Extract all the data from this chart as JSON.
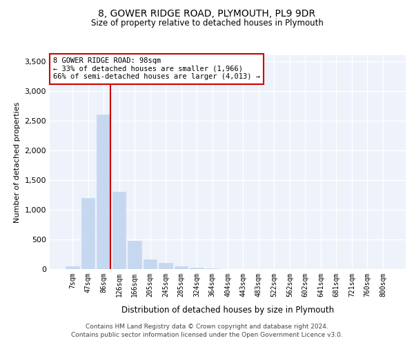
{
  "title_line1": "8, GOWER RIDGE ROAD, PLYMOUTH, PL9 9DR",
  "title_line2": "Size of property relative to detached houses in Plymouth",
  "xlabel": "Distribution of detached houses by size in Plymouth",
  "ylabel": "Number of detached properties",
  "bar_labels": [
    "7sqm",
    "47sqm",
    "86sqm",
    "126sqm",
    "166sqm",
    "205sqm",
    "245sqm",
    "285sqm",
    "324sqm",
    "364sqm",
    "404sqm",
    "443sqm",
    "483sqm",
    "522sqm",
    "562sqm",
    "602sqm",
    "641sqm",
    "681sqm",
    "721sqm",
    "760sqm",
    "800sqm"
  ],
  "bar_values": [
    50,
    1200,
    2600,
    1300,
    480,
    160,
    110,
    50,
    20,
    10,
    5,
    3,
    2,
    0,
    0,
    0,
    0,
    0,
    0,
    0,
    0
  ],
  "bar_color": "#c5d8f0",
  "bar_edgecolor": "#c5d8f0",
  "vline_color": "#cc0000",
  "vline_x": 2.43,
  "ylim": [
    0,
    3600
  ],
  "yticks": [
    0,
    500,
    1000,
    1500,
    2000,
    2500,
    3000,
    3500
  ],
  "background_color": "#eef2fa",
  "grid_color": "#ffffff",
  "annotation_text": "8 GOWER RIDGE ROAD: 98sqm\n← 33% of detached houses are smaller (1,966)\n66% of semi-detached houses are larger (4,013) →",
  "footer_line1": "Contains HM Land Registry data © Crown copyright and database right 2024.",
  "footer_line2": "Contains public sector information licensed under the Open Government Licence v3.0."
}
